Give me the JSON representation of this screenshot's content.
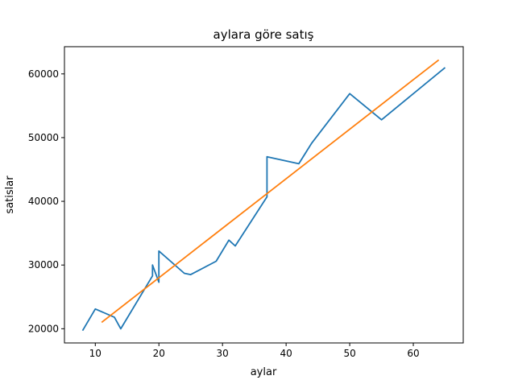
{
  "chart_data": {
    "type": "line",
    "title": "aylara göre satış",
    "xlabel": "aylar",
    "ylabel": "satislar",
    "xlim": [
      5.15,
      67.85
    ],
    "ylim": [
      17770,
      64270
    ],
    "xticks": [
      10,
      20,
      30,
      40,
      50,
      60
    ],
    "yticks": [
      20000,
      30000,
      40000,
      50000,
      60000
    ],
    "grid": false,
    "series": [
      {
        "color": "#1f77b4",
        "points": [
          [
            8,
            19700
          ],
          [
            10,
            23100
          ],
          [
            13,
            21800
          ],
          [
            14,
            20000
          ],
          [
            19,
            28300
          ],
          [
            19,
            30000
          ],
          [
            20,
            27300
          ],
          [
            20,
            32200
          ],
          [
            24,
            28700
          ],
          [
            25,
            28500
          ],
          [
            29,
            30600
          ],
          [
            31,
            33900
          ],
          [
            32,
            33000
          ],
          [
            37,
            40700
          ],
          [
            37,
            47000
          ],
          [
            42,
            45900
          ],
          [
            44,
            49100
          ],
          [
            50,
            56900
          ],
          [
            55,
            52800
          ],
          [
            65,
            61000
          ]
        ]
      },
      {
        "color": "#ff7f0e",
        "points": [
          [
            11,
            21000
          ],
          [
            64,
            62200
          ]
        ]
      }
    ]
  }
}
